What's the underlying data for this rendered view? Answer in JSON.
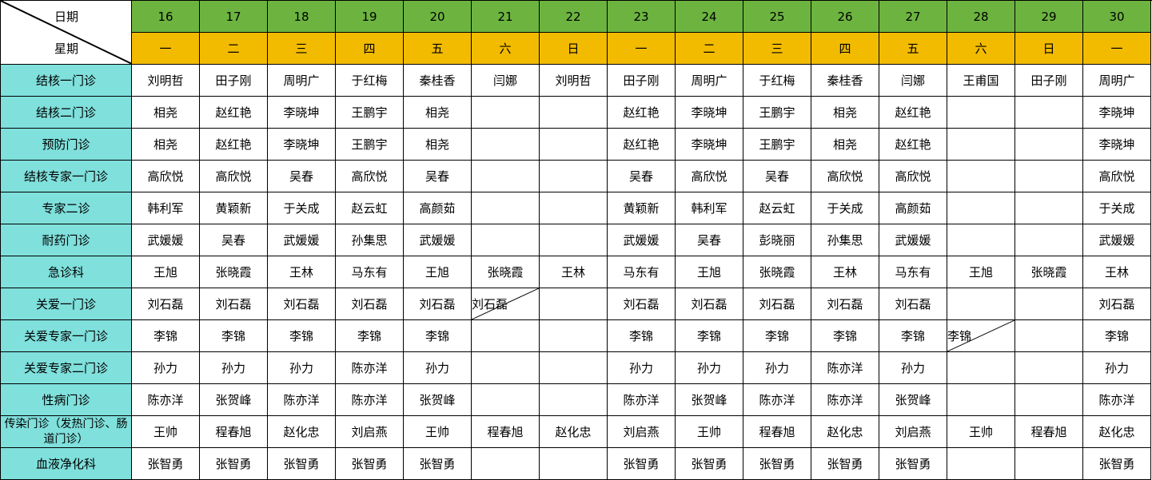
{
  "header": {
    "date_label": "日期",
    "weekday_label": "星期",
    "dates": [
      16,
      17,
      18,
      19,
      20,
      21,
      22,
      23,
      24,
      25,
      26,
      27,
      28,
      29,
      30
    ],
    "weekdays": [
      "一",
      "二",
      "三",
      "四",
      "五",
      "六",
      "日",
      "一",
      "二",
      "三",
      "四",
      "五",
      "六",
      "日",
      "一"
    ]
  },
  "rows": [
    {
      "label": "结核一门诊",
      "cells": [
        "刘明哲",
        "田子刚",
        "周明广",
        "于红梅",
        "秦桂香",
        "闫娜",
        "刘明哲",
        "田子刚",
        "周明广",
        "于红梅",
        "秦桂香",
        "闫娜",
        "王甫国",
        "田子刚",
        "周明广"
      ]
    },
    {
      "label": "结核二门诊",
      "cells": [
        "相尧",
        "赵红艳",
        "李晓坤",
        "王鹏宇",
        "相尧",
        null,
        null,
        "赵红艳",
        "李晓坤",
        "王鹏宇",
        "相尧",
        "赵红艳",
        null,
        null,
        "李晓坤"
      ]
    },
    {
      "label": "预防门诊",
      "cells": [
        "相尧",
        "赵红艳",
        "李晓坤",
        "王鹏宇",
        "相尧",
        null,
        null,
        "赵红艳",
        "李晓坤",
        "王鹏宇",
        "相尧",
        "赵红艳",
        null,
        null,
        "李晓坤"
      ]
    },
    {
      "label": "结核专家一门诊",
      "cells": [
        "高欣悦",
        "高欣悦",
        "吴春",
        "高欣悦",
        "吴春",
        null,
        null,
        "吴春",
        "高欣悦",
        "吴春",
        "高欣悦",
        "高欣悦",
        null,
        null,
        "高欣悦"
      ]
    },
    {
      "label": "专家二诊",
      "cells": [
        "韩利军",
        "黄颖新",
        "于关成",
        "赵云虹",
        "高颜茹",
        null,
        null,
        "黄颖新",
        "韩利军",
        "赵云虹",
        "于关成",
        "高颜茹",
        null,
        null,
        "于关成"
      ]
    },
    {
      "label": "耐药门诊",
      "cells": [
        "武媛媛",
        "吴春",
        "武媛媛",
        "孙集思",
        "武媛媛",
        null,
        null,
        "武媛媛",
        "吴春",
        "彭晓丽",
        "孙集思",
        "武媛媛",
        null,
        null,
        "武媛媛"
      ]
    },
    {
      "label": "急诊科",
      "cells": [
        "王旭",
        "张晓霞",
        "王林",
        "马东有",
        "王旭",
        "张晓霞",
        "王林",
        "马东有",
        "王旭",
        "张晓霞",
        "王林",
        "马东有",
        "王旭",
        "张晓霞",
        "王林"
      ]
    },
    {
      "label": "关爱一门诊",
      "cells": [
        "刘石磊",
        "刘石磊",
        "刘石磊",
        "刘石磊",
        "刘石磊",
        "刘石磊",
        null,
        "刘石磊",
        "刘石磊",
        "刘石磊",
        "刘石磊",
        "刘石磊",
        null,
        null,
        "刘石磊"
      ]
    },
    {
      "label": "关爱专家一门诊",
      "cells": [
        "李锦",
        "李锦",
        "李锦",
        "李锦",
        "李锦",
        null,
        null,
        "李锦",
        "李锦",
        "李锦",
        "李锦",
        "李锦",
        "李锦",
        null,
        "李锦"
      ]
    },
    {
      "label": "关爱专家二门诊",
      "cells": [
        "孙力",
        "孙力",
        "孙力",
        "陈亦洋",
        "孙力",
        null,
        null,
        "孙力",
        "孙力",
        "孙力",
        "陈亦洋",
        "孙力",
        null,
        null,
        "孙力"
      ]
    },
    {
      "label": "性病门诊",
      "cells": [
        "陈亦洋",
        "张贺峰",
        "陈亦洋",
        "陈亦洋",
        "张贺峰",
        null,
        null,
        "陈亦洋",
        "张贺峰",
        "陈亦洋",
        "陈亦洋",
        "张贺峰",
        null,
        null,
        "陈亦洋"
      ]
    },
    {
      "label": "传染门诊（发热门诊、肠道门诊）",
      "cells": [
        "王帅",
        "程春旭",
        "赵化忠",
        "刘启燕",
        "王帅",
        "程春旭",
        "赵化忠",
        "刘启燕",
        "王帅",
        "程春旭",
        "赵化忠",
        "刘启燕",
        "王帅",
        "程春旭",
        "赵化忠"
      ]
    },
    {
      "label": "血液净化科",
      "cells": [
        "张智勇",
        "张智勇",
        "张智勇",
        "张智勇",
        "张智勇",
        null,
        null,
        "张智勇",
        "张智勇",
        "张智勇",
        "张智勇",
        "张智勇",
        null,
        null,
        "张智勇"
      ]
    }
  ]
}
